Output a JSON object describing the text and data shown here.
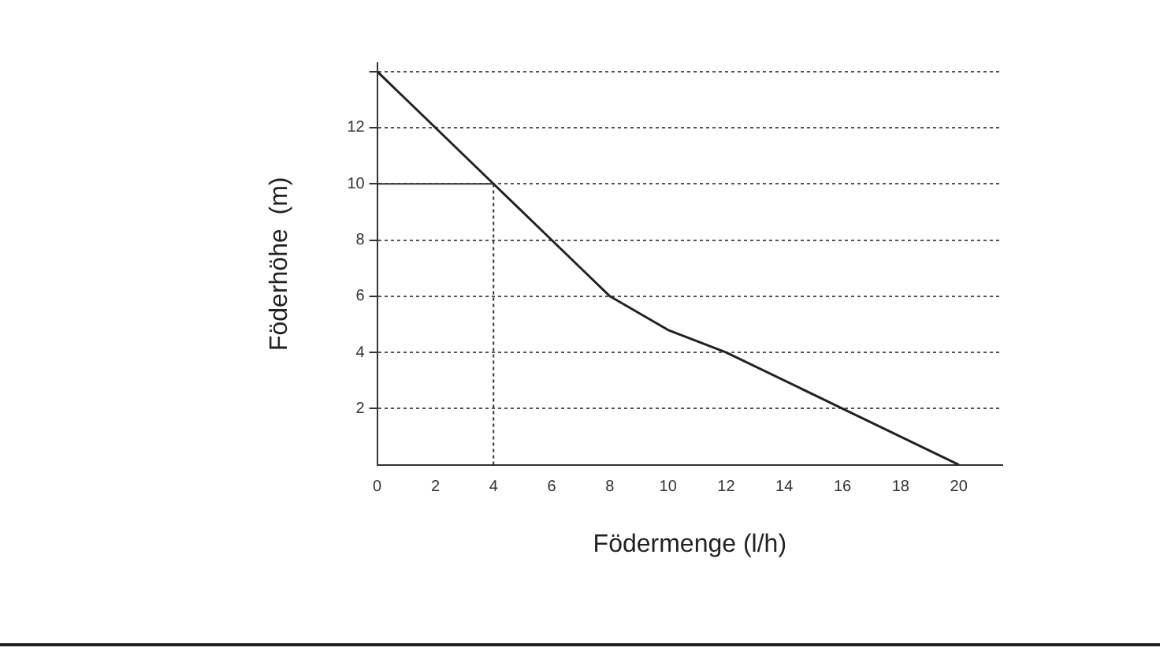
{
  "chart_data": {
    "type": "line",
    "xlabel": "Födermenge (l/h)",
    "ylabel": "Föderhöhe  (m)",
    "x": [
      0,
      4,
      6,
      8,
      10,
      12,
      16,
      20
    ],
    "series": [
      {
        "color": "#222222",
        "values": [
          14,
          10,
          8,
          6,
          4.8,
          4,
          2,
          0
        ]
      }
    ],
    "xlim": [
      0,
      21.5
    ],
    "ylim": [
      0,
      14.3
    ],
    "xticks": [
      0,
      2,
      4,
      6,
      8,
      10,
      12,
      14,
      16,
      18,
      20
    ],
    "yticks": [
      2,
      4,
      6,
      8,
      10,
      12,
      {
        "value": 14,
        "label": null
      }
    ],
    "grid": "y",
    "legend": false,
    "marker": "none",
    "line_style": "solid",
    "ref_lines": [
      {
        "axis": "x",
        "value": 4,
        "line_style": "dotted",
        "color": "#333333"
      },
      {
        "axis": "y",
        "value": 10,
        "line_style": "solid",
        "color": "#333333"
      }
    ]
  }
}
